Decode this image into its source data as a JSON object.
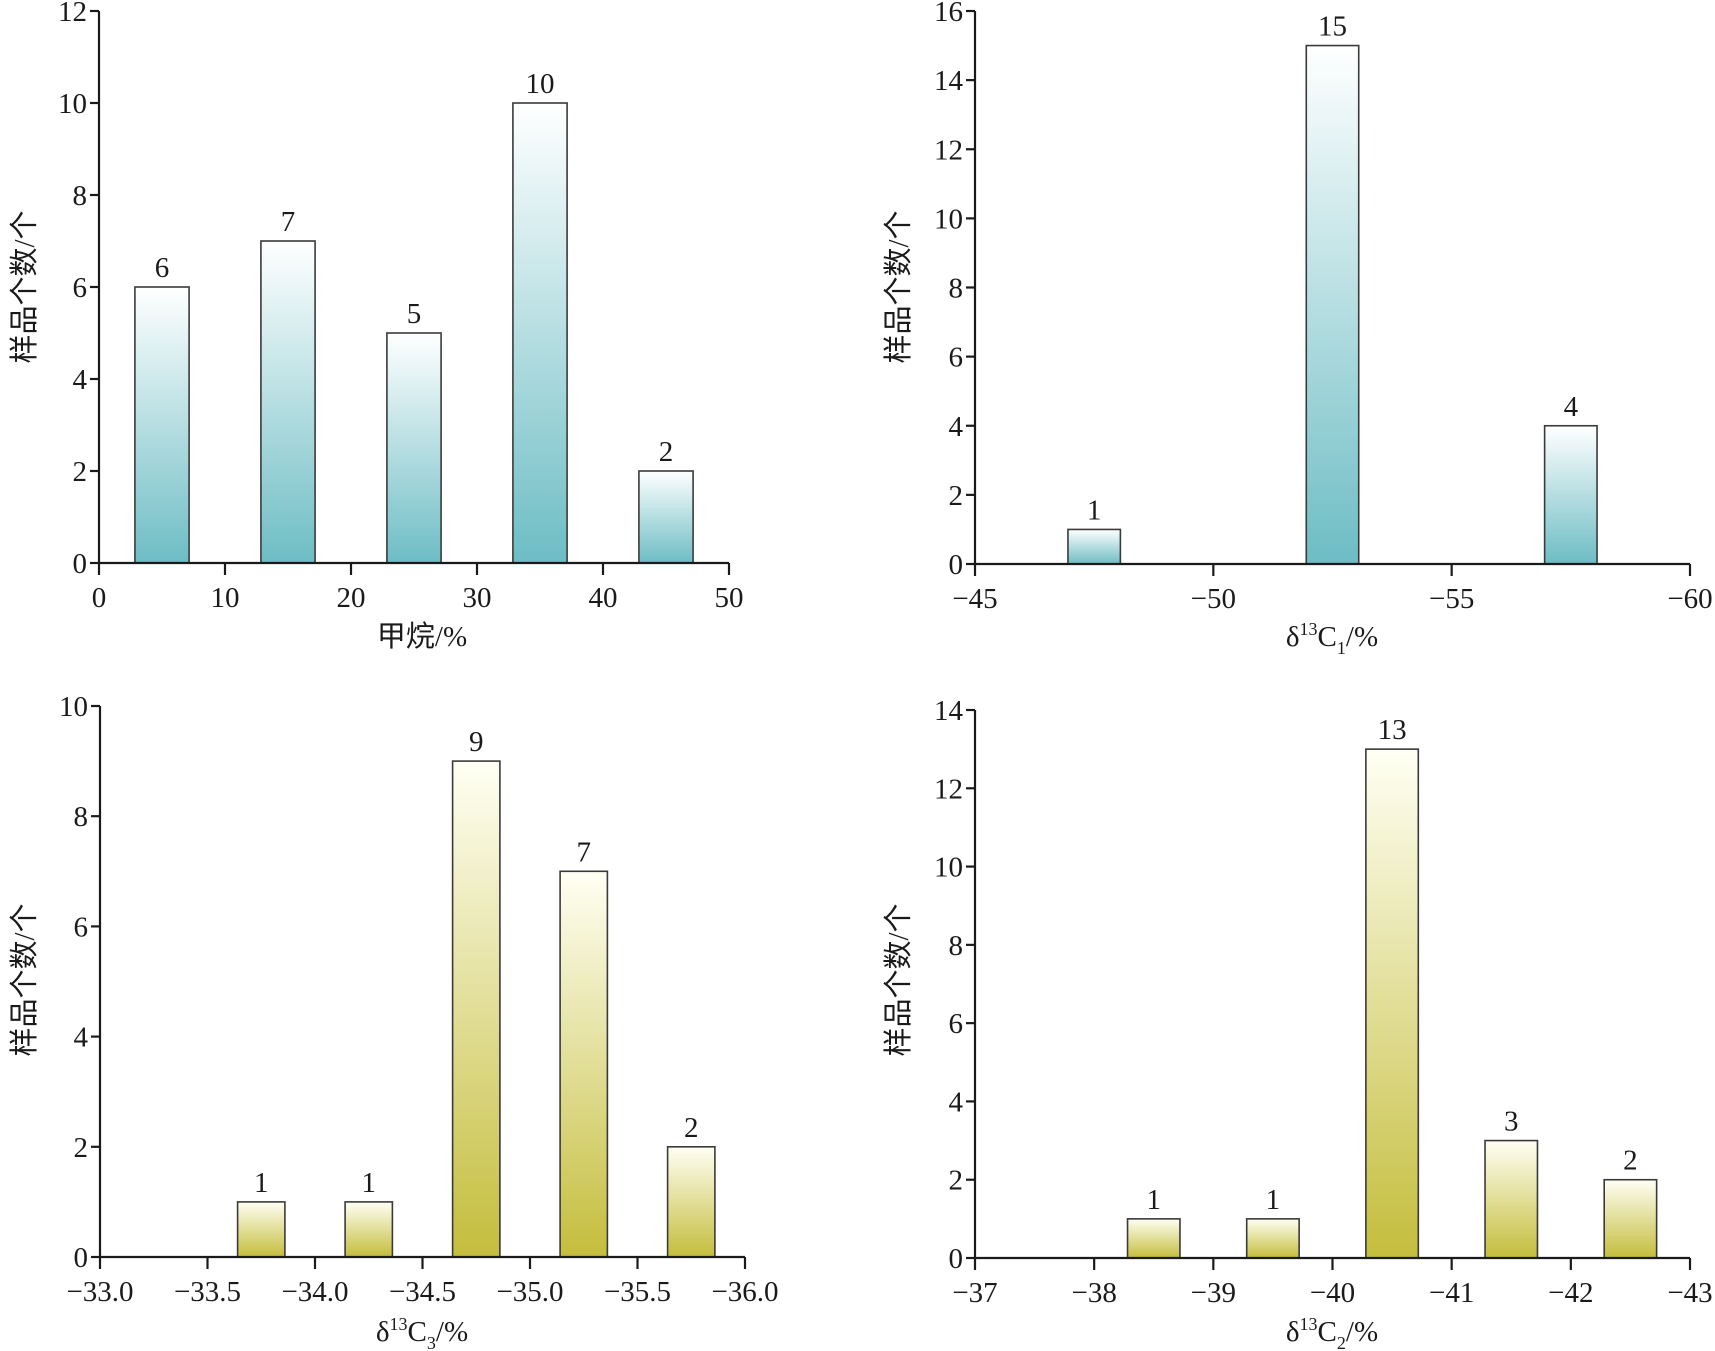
{
  "colors": {
    "teal_top": "#ffffff",
    "teal_bottom": "#6dbdc4",
    "olive_top": "#fffff4",
    "olive_bottom": "#c4bd3c"
  },
  "chart_data": [
    {
      "type": "bar",
      "id": "methane",
      "xlabel": "甲烷/%",
      "ylabel": "样品个数/个",
      "xlim": [
        0,
        50
      ],
      "ylim": [
        0,
        12
      ],
      "xticks": [
        0,
        10,
        20,
        30,
        40,
        50
      ],
      "xtick_labels": [
        "0",
        "10",
        "20",
        "30",
        "40",
        "50"
      ],
      "yticks": [
        0,
        2,
        4,
        6,
        8,
        10,
        12
      ],
      "ytick_labels": [
        "0",
        "2",
        "4",
        "6",
        "8",
        "10",
        "12"
      ],
      "categories": [
        "0–10",
        "10–20",
        "20–30",
        "30–40",
        "40–50"
      ],
      "bin_centers": [
        5,
        15,
        25,
        35,
        45
      ],
      "bin_width": 4.3,
      "values": [
        6,
        7,
        5,
        10,
        2
      ],
      "data_labels": [
        "6",
        "7",
        "5",
        "10",
        "2"
      ],
      "color_scheme": "teal",
      "grid": false
    },
    {
      "type": "bar",
      "id": "d13c1",
      "xlabel_main": "δ",
      "xlabel_sup": "13",
      "xlabel_c": "C",
      "xlabel_sub": "1",
      "xlabel_unit": "/%",
      "ylabel": "样品个数/个",
      "xlim": [
        -45,
        -60
      ],
      "ylim": [
        0,
        16
      ],
      "xticks": [
        -45,
        -50,
        -55,
        -60
      ],
      "xtick_labels": [
        "−45",
        "−50",
        "−55",
        "−60"
      ],
      "yticks": [
        0,
        2,
        4,
        6,
        8,
        10,
        12,
        14,
        16
      ],
      "ytick_labels": [
        "0",
        "2",
        "4",
        "6",
        "8",
        "10",
        "12",
        "14",
        "16"
      ],
      "categories": [
        "−45~−50",
        "−50~−55",
        "−55~−60"
      ],
      "bin_centers": [
        -47.5,
        -52.5,
        -57.5
      ],
      "bin_width": 1.1,
      "values": [
        1,
        15,
        4
      ],
      "data_labels": [
        "1",
        "15",
        "4"
      ],
      "color_scheme": "teal",
      "grid": false
    },
    {
      "type": "bar",
      "id": "d13c3",
      "xlabel_main": "δ",
      "xlabel_sup": "13",
      "xlabel_c": "C",
      "xlabel_sub": "3",
      "xlabel_unit": "/%",
      "ylabel": "样品个数/个",
      "xlim": [
        -33.0,
        -36.0
      ],
      "ylim": [
        0,
        10
      ],
      "xticks": [
        -33.0,
        -33.5,
        -34.0,
        -34.5,
        -35.0,
        -35.5,
        -36.0
      ],
      "xtick_labels": [
        "−33.0",
        "−33.5",
        "−34.0",
        "−34.5",
        "−35.0",
        "−35.5",
        "−36.0"
      ],
      "yticks": [
        0,
        2,
        4,
        6,
        8,
        10
      ],
      "ytick_labels": [
        "0",
        "2",
        "4",
        "6",
        "8",
        "10"
      ],
      "categories": [
        "−33.5~−34.0",
        "−34.0~−34.5",
        "−34.5~−35.0",
        "−35.0~−35.5",
        "−35.5~−36.0"
      ],
      "bin_centers": [
        -33.75,
        -34.25,
        -34.75,
        -35.25,
        -35.75
      ],
      "bin_width": 0.22,
      "values": [
        1,
        1,
        9,
        7,
        2
      ],
      "data_labels": [
        "1",
        "1",
        "9",
        "7",
        "2"
      ],
      "color_scheme": "olive",
      "grid": false
    },
    {
      "type": "bar",
      "id": "d13c2",
      "xlabel_main": "δ",
      "xlabel_sup": "13",
      "xlabel_c": "C",
      "xlabel_sub": "2",
      "xlabel_unit": "/%",
      "ylabel": "样品个数/个",
      "xlim": [
        -37,
        -43
      ],
      "ylim": [
        0,
        14
      ],
      "xticks": [
        -37,
        -38,
        -39,
        -40,
        -41,
        -42,
        -43
      ],
      "xtick_labels": [
        "−37",
        "−38",
        "−39",
        "−40",
        "−41",
        "−42",
        "−43"
      ],
      "yticks": [
        0,
        2,
        4,
        6,
        8,
        10,
        12,
        14
      ],
      "ytick_labels": [
        "0",
        "2",
        "4",
        "6",
        "8",
        "10",
        "12",
        "14"
      ],
      "categories": [
        "−38~−39",
        "−39~−40",
        "−40~−41",
        "−41~−42",
        "−42~−43"
      ],
      "bin_centers": [
        -38.5,
        -39.5,
        -40.5,
        -41.5,
        -42.5
      ],
      "bin_width": 0.44,
      "values": [
        1,
        1,
        13,
        3,
        2
      ],
      "data_labels": [
        "1",
        "1",
        "13",
        "3",
        "2"
      ],
      "color_scheme": "olive",
      "grid": false
    }
  ]
}
